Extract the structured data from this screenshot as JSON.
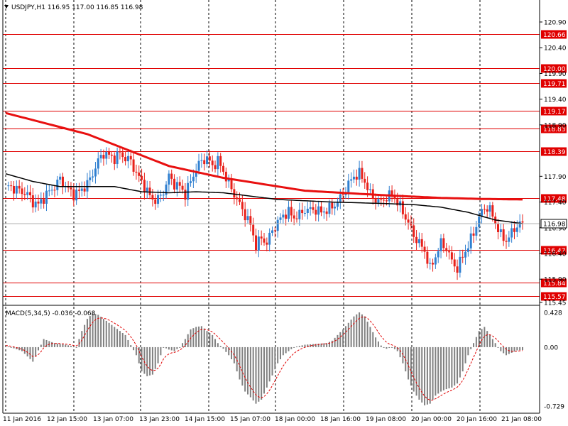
{
  "chart_data": {
    "type": "candlestick",
    "symbol_info": "USDJPY,H1  116.95 117.00 116.85 116.98",
    "current_price": "116.98",
    "price_ticks": [
      "120.90",
      "120.40",
      "119.90",
      "119.40",
      "118.90",
      "117.90",
      "117.40",
      "116.90",
      "116.40",
      "115.90",
      "115.45"
    ],
    "levels": [
      {
        "label": "120.66",
        "value": 120.66
      },
      {
        "label": "120.00",
        "value": 120.0
      },
      {
        "label": "119.71",
        "value": 119.71
      },
      {
        "label": "119.17",
        "value": 119.17
      },
      {
        "label": "118.83",
        "value": 118.83
      },
      {
        "label": "118.39",
        "value": 118.39
      },
      {
        "label": "117.48",
        "value": 117.48
      },
      {
        "label": "116.47",
        "value": 116.47
      },
      {
        "label": "115.84",
        "value": 115.84
      },
      {
        "label": "115.57",
        "value": 115.57
      }
    ],
    "price_range": [
      115.42,
      121.3
    ],
    "time_labels": [
      "11 Jan 2016",
      "12 Jan 15:00",
      "13 Jan 07:00",
      "13 Jan 23:00",
      "14 Jan 15:00",
      "15 Jan 07:00",
      "18 Jan 00:00",
      "18 Jan 16:00",
      "19 Jan 08:00",
      "20 Jan 00:00",
      "20 Jan 16:00",
      "21 Jan 08:00"
    ],
    "close_path": [
      [
        0,
        117.72
      ],
      [
        4,
        117.65
      ],
      [
        8,
        117.55
      ],
      [
        10,
        117.4
      ],
      [
        12,
        117.35
      ],
      [
        15,
        117.55
      ],
      [
        18,
        117.7
      ],
      [
        20,
        117.85
      ],
      [
        22,
        117.7
      ],
      [
        25,
        117.55
      ],
      [
        27,
        117.6
      ],
      [
        30,
        117.75
      ],
      [
        32,
        117.95
      ],
      [
        34,
        118.2
      ],
      [
        36,
        118.35
      ],
      [
        38,
        118.3
      ],
      [
        40,
        118.25
      ],
      [
        42,
        118.35
      ],
      [
        44,
        118.25
      ],
      [
        46,
        118.2
      ],
      [
        48,
        117.95
      ],
      [
        50,
        117.8
      ],
      [
        52,
        117.6
      ],
      [
        54,
        117.45
      ],
      [
        56,
        117.45
      ],
      [
        58,
        117.6
      ],
      [
        60,
        117.9
      ],
      [
        62,
        117.75
      ],
      [
        64,
        117.7
      ],
      [
        66,
        117.55
      ],
      [
        68,
        117.8
      ],
      [
        70,
        118.05
      ],
      [
        72,
        118.2
      ],
      [
        74,
        118.25
      ],
      [
        76,
        118.1
      ],
      [
        78,
        118.2
      ],
      [
        80,
        118.0
      ],
      [
        82,
        117.75
      ],
      [
        84,
        117.55
      ],
      [
        86,
        117.35
      ],
      [
        88,
        117.15
      ],
      [
        90,
        116.95
      ],
      [
        91,
        116.75
      ],
      [
        92,
        116.55
      ],
      [
        94,
        116.7
      ],
      [
        96,
        116.6
      ],
      [
        98,
        116.85
      ],
      [
        100,
        117.0
      ],
      [
        102,
        117.15
      ],
      [
        104,
        117.2
      ],
      [
        106,
        117.1
      ],
      [
        108,
        117.15
      ],
      [
        110,
        117.25
      ],
      [
        112,
        117.25
      ],
      [
        114,
        117.25
      ],
      [
        116,
        117.2
      ],
      [
        118,
        117.25
      ],
      [
        120,
        117.3
      ],
      [
        122,
        117.4
      ],
      [
        124,
        117.55
      ],
      [
        126,
        117.75
      ],
      [
        128,
        117.9
      ],
      [
        130,
        117.95
      ],
      [
        132,
        117.8
      ],
      [
        134,
        117.55
      ],
      [
        136,
        117.45
      ],
      [
        138,
        117.4
      ],
      [
        140,
        117.5
      ],
      [
        142,
        117.55
      ],
      [
        144,
        117.4
      ],
      [
        146,
        117.2
      ],
      [
        148,
        117.0
      ],
      [
        150,
        116.75
      ],
      [
        152,
        116.6
      ],
      [
        154,
        116.45
      ],
      [
        156,
        116.1
      ],
      [
        158,
        116.35
      ],
      [
        160,
        116.6
      ],
      [
        162,
        116.5
      ],
      [
        164,
        116.25
      ],
      [
        166,
        116.1
      ],
      [
        168,
        116.35
      ],
      [
        170,
        116.55
      ],
      [
        172,
        116.8
      ],
      [
        174,
        117.1
      ],
      [
        176,
        117.3
      ],
      [
        178,
        117.25
      ],
      [
        180,
        117.0
      ],
      [
        182,
        116.75
      ],
      [
        184,
        116.65
      ],
      [
        186,
        116.8
      ],
      [
        188,
        116.95
      ],
      [
        190,
        116.98
      ]
    ],
    "ma_slow": [
      [
        0,
        119.13
      ],
      [
        30,
        118.72
      ],
      [
        60,
        118.1
      ],
      [
        80,
        117.87
      ],
      [
        110,
        117.62
      ],
      [
        140,
        117.53
      ],
      [
        160,
        117.48
      ],
      [
        175,
        117.46
      ],
      [
        190,
        117.45
      ]
    ],
    "ma_fast": [
      [
        0,
        117.95
      ],
      [
        10,
        117.8
      ],
      [
        20,
        117.7
      ],
      [
        40,
        117.7
      ],
      [
        50,
        117.6
      ],
      [
        60,
        117.58
      ],
      [
        70,
        117.6
      ],
      [
        80,
        117.58
      ],
      [
        100,
        117.45
      ],
      [
        120,
        117.4
      ],
      [
        140,
        117.37
      ],
      [
        150,
        117.35
      ],
      [
        160,
        117.3
      ],
      [
        170,
        117.2
      ],
      [
        180,
        117.05
      ],
      [
        190,
        116.98
      ]
    ],
    "macd_label": "MACD(5,34,5) -0.036 -0.068",
    "macd_ticks": [
      "0.428",
      "0.00",
      "-0.729"
    ],
    "macd_range": [
      -0.8,
      0.5
    ],
    "macd_shape": [
      [
        0,
        0.02
      ],
      [
        6,
        -0.05
      ],
      [
        10,
        -0.18
      ],
      [
        14,
        0.1
      ],
      [
        18,
        0.05
      ],
      [
        22,
        0.03
      ],
      [
        26,
        0.0
      ],
      [
        28,
        0.2
      ],
      [
        30,
        0.35
      ],
      [
        32,
        0.42
      ],
      [
        34,
        0.4
      ],
      [
        36,
        0.35
      ],
      [
        38,
        0.3
      ],
      [
        40,
        0.25
      ],
      [
        44,
        0.15
      ],
      [
        48,
        -0.1
      ],
      [
        50,
        -0.3
      ],
      [
        52,
        -0.36
      ],
      [
        54,
        -0.34
      ],
      [
        56,
        -0.2
      ],
      [
        58,
        0.0
      ],
      [
        60,
        -0.03
      ],
      [
        62,
        -0.05
      ],
      [
        64,
        0.0
      ],
      [
        66,
        0.1
      ],
      [
        68,
        0.22
      ],
      [
        70,
        0.25
      ],
      [
        72,
        0.26
      ],
      [
        74,
        0.2
      ],
      [
        76,
        0.15
      ],
      [
        78,
        0.05
      ],
      [
        80,
        -0.02
      ],
      [
        82,
        -0.1
      ],
      [
        84,
        -0.2
      ],
      [
        86,
        -0.4
      ],
      [
        88,
        -0.55
      ],
      [
        90,
        -0.62
      ],
      [
        92,
        -0.7
      ],
      [
        94,
        -0.65
      ],
      [
        96,
        -0.5
      ],
      [
        98,
        -0.35
      ],
      [
        100,
        -0.2
      ],
      [
        102,
        -0.1
      ],
      [
        104,
        -0.05
      ],
      [
        106,
        0.0
      ],
      [
        110,
        0.03
      ],
      [
        114,
        0.04
      ],
      [
        118,
        0.05
      ],
      [
        120,
        0.08
      ],
      [
        122,
        0.15
      ],
      [
        124,
        0.22
      ],
      [
        126,
        0.3
      ],
      [
        128,
        0.38
      ],
      [
        130,
        0.43
      ],
      [
        132,
        0.38
      ],
      [
        134,
        0.25
      ],
      [
        136,
        0.12
      ],
      [
        138,
        0.02
      ],
      [
        140,
        -0.02
      ],
      [
        142,
        0.0
      ],
      [
        144,
        -0.05
      ],
      [
        146,
        -0.2
      ],
      [
        148,
        -0.4
      ],
      [
        150,
        -0.55
      ],
      [
        152,
        -0.65
      ],
      [
        154,
        -0.72
      ],
      [
        156,
        -0.7
      ],
      [
        158,
        -0.6
      ],
      [
        160,
        -0.55
      ],
      [
        162,
        -0.52
      ],
      [
        164,
        -0.5
      ],
      [
        166,
        -0.45
      ],
      [
        168,
        -0.3
      ],
      [
        170,
        -0.1
      ],
      [
        172,
        0.05
      ],
      [
        174,
        0.2
      ],
      [
        176,
        0.25
      ],
      [
        178,
        0.15
      ],
      [
        180,
        0.05
      ],
      [
        182,
        -0.05
      ],
      [
        184,
        -0.1
      ],
      [
        186,
        -0.07
      ],
      [
        188,
        -0.04
      ],
      [
        190,
        -0.036
      ]
    ],
    "colors": {
      "bull": "#2f7fd0",
      "bear": "#e8201a",
      "ma_slow": "#e81010",
      "ma_fast": "#000000",
      "level": "#e00000",
      "histogram": "#808080",
      "signal": "#e00000",
      "grid": "#000000"
    }
  }
}
